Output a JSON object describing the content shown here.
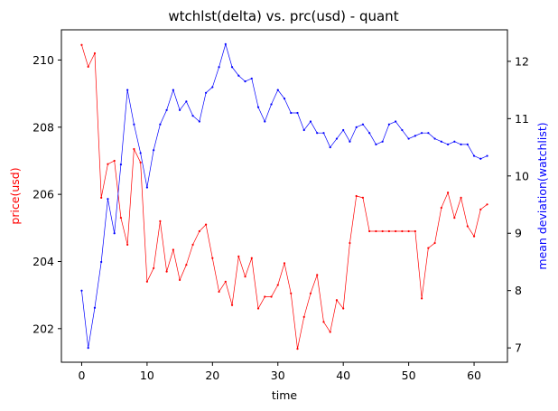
{
  "chart_data": {
    "type": "line",
    "title": "wtchlst(delta) vs. prc(usd) - quant",
    "xlabel": "time",
    "ylabel_left": "price(usd)",
    "ylabel_right": "mean deviation(watchlist)",
    "xlim": [
      -3.1,
      65.1
    ],
    "ylim_left": [
      201.0,
      210.9
    ],
    "ylim_right": [
      6.75,
      12.55
    ],
    "x_ticks": [
      0,
      10,
      20,
      30,
      40,
      50,
      60
    ],
    "y_ticks_left": [
      202,
      204,
      206,
      208,
      210
    ],
    "y_ticks_right": [
      7,
      8,
      9,
      10,
      11,
      12
    ],
    "grid": false,
    "colors": {
      "left": "#ff0000",
      "right": "#0000ff"
    },
    "series": [
      {
        "axis": "left",
        "color": "#ff0000",
        "x": [
          0,
          1,
          2,
          3,
          4,
          5,
          6,
          7,
          8,
          9,
          10,
          11,
          12,
          13,
          14,
          15,
          16,
          17,
          18,
          19,
          20,
          21,
          22,
          23,
          24,
          25,
          26,
          27,
          28,
          29,
          30,
          31,
          32,
          33,
          34,
          35,
          36,
          37,
          38,
          39,
          40,
          41,
          42,
          43,
          44,
          45,
          46,
          47,
          48,
          49,
          50,
          51,
          52,
          53,
          54,
          55,
          56,
          57,
          58,
          59,
          60,
          61,
          62
        ],
        "values": [
          210.45,
          209.8,
          210.2,
          205.9,
          206.9,
          207.0,
          205.3,
          204.5,
          207.35,
          206.95,
          203.4,
          203.8,
          205.2,
          203.7,
          204.35,
          203.45,
          203.9,
          204.5,
          204.9,
          205.1,
          204.1,
          203.1,
          203.4,
          202.7,
          204.15,
          203.55,
          204.1,
          202.6,
          202.95,
          202.95,
          203.3,
          203.95,
          203.05,
          201.4,
          202.35,
          203.05,
          203.6,
          202.2,
          201.9,
          202.85,
          202.6,
          204.55,
          205.95,
          205.9,
          204.9,
          204.9,
          204.9,
          204.9,
          204.9,
          204.9,
          204.9,
          204.9,
          202.9,
          204.4,
          204.55,
          205.6,
          206.05,
          205.3,
          205.9,
          205.05,
          204.75,
          205.55,
          205.7
        ]
      },
      {
        "axis": "right",
        "color": "#0000ff",
        "x": [
          0,
          1,
          2,
          3,
          4,
          5,
          6,
          7,
          8,
          9,
          10,
          11,
          12,
          13,
          14,
          15,
          16,
          17,
          18,
          19,
          20,
          21,
          22,
          23,
          24,
          25,
          26,
          27,
          28,
          29,
          30,
          31,
          32,
          33,
          34,
          35,
          36,
          37,
          38,
          39,
          40,
          41,
          42,
          43,
          44,
          45,
          46,
          47,
          48,
          49,
          50,
          51,
          52,
          53,
          54,
          55,
          56,
          57,
          58,
          59,
          60,
          61,
          62
        ],
        "values": [
          8.0,
          7.0,
          7.7,
          8.5,
          9.6,
          9.0,
          10.2,
          11.5,
          10.9,
          10.4,
          9.8,
          10.45,
          10.9,
          11.15,
          11.5,
          11.15,
          11.3,
          11.05,
          10.95,
          11.45,
          11.55,
          11.9,
          12.3,
          11.9,
          11.75,
          11.65,
          11.7,
          11.2,
          10.95,
          11.25,
          11.5,
          11.35,
          11.1,
          11.1,
          10.8,
          10.95,
          10.75,
          10.75,
          10.5,
          10.65,
          10.8,
          10.6,
          10.85,
          10.9,
          10.75,
          10.55,
          10.6,
          10.9,
          10.95,
          10.8,
          10.65,
          10.7,
          10.75,
          10.75,
          10.65,
          10.6,
          10.55,
          10.6,
          10.55,
          10.55,
          10.35,
          10.3,
          10.35
        ]
      }
    ]
  }
}
